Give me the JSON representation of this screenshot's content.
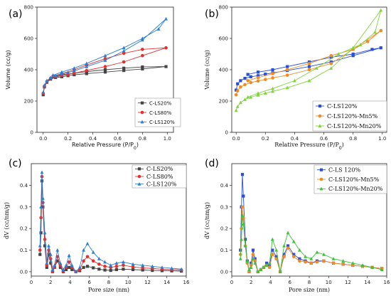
{
  "chart_data": [
    {
      "panel": "(a)",
      "type": "line",
      "xlabel": "Relative Pressure (P/P",
      "xlabel_sub": "0",
      "xlabel_tail": ")",
      "ylabel": "Volume (cc/g)",
      "xlim": [
        -0.05,
        1.05
      ],
      "ylim": [
        0,
        800
      ],
      "xticks": [
        0.0,
        0.2,
        0.4,
        0.6,
        0.8,
        1.0
      ],
      "xtick_labels": [
        "0.0",
        "0.2",
        "0.4",
        "0.6",
        "0.8",
        "1.0"
      ],
      "yticks": [
        0,
        200,
        400,
        600,
        800
      ],
      "ytick_labels": [
        "0",
        "200",
        "400",
        "600",
        "800"
      ],
      "legend_position": "bottom-right",
      "series": [
        {
          "name": "C-LS20%",
          "color": "#444444",
          "marker": "square",
          "x": [
            0.0,
            0.01,
            0.03,
            0.06,
            0.1,
            0.15,
            0.2,
            0.25,
            0.35,
            0.5,
            0.65,
            0.8,
            0.99,
            0.8,
            0.65,
            0.5,
            0.35,
            0.25,
            0.15,
            0.08
          ],
          "y": [
            240,
            290,
            320,
            340,
            350,
            355,
            362,
            368,
            375,
            385,
            395,
            405,
            420,
            418,
            410,
            400,
            388,
            378,
            368,
            355
          ]
        },
        {
          "name": "C-LS80%",
          "color": "#e03030",
          "marker": "circle",
          "x": [
            0.0,
            0.01,
            0.03,
            0.06,
            0.1,
            0.15,
            0.2,
            0.25,
            0.35,
            0.5,
            0.65,
            0.8,
            0.99,
            0.8,
            0.65,
            0.5,
            0.35,
            0.25,
            0.15,
            0.08
          ],
          "y": [
            250,
            295,
            325,
            345,
            355,
            362,
            370,
            378,
            395,
            420,
            450,
            490,
            540,
            530,
            505,
            470,
            430,
            400,
            375,
            360
          ]
        },
        {
          "name": "C-LS120%",
          "color": "#2a7fd4",
          "marker": "triangle",
          "x": [
            0.0,
            0.01,
            0.03,
            0.06,
            0.1,
            0.15,
            0.2,
            0.25,
            0.35,
            0.5,
            0.65,
            0.8,
            0.99,
            0.93,
            0.8,
            0.65,
            0.5,
            0.35,
            0.25,
            0.15,
            0.08
          ],
          "y": [
            255,
            300,
            330,
            350,
            362,
            372,
            382,
            392,
            420,
            460,
            520,
            590,
            725,
            660,
            600,
            540,
            490,
            440,
            410,
            385,
            365
          ]
        }
      ]
    },
    {
      "panel": "(b)",
      "type": "line",
      "xlabel": "Relative Pressure (P/P",
      "xlabel_sub": "0",
      "xlabel_tail": ")",
      "ylabel": "Volume (cc/g)",
      "xlim": [
        -0.03,
        1.03
      ],
      "ylim": [
        0,
        800
      ],
      "xticks": [
        0.0,
        0.2,
        0.4,
        0.6,
        0.8,
        1.0
      ],
      "xtick_labels": [
        "0.0",
        "0.2",
        "0.4",
        "0.6",
        "0.8",
        "1.0"
      ],
      "yticks": [
        0,
        200,
        400,
        600,
        800
      ],
      "ytick_labels": [
        "0",
        "200",
        "400",
        "600",
        "800"
      ],
      "legend_position": "bottom-right",
      "series": [
        {
          "name": "C-LS120%",
          "color": "#2a4fd4",
          "marker": "square",
          "x": [
            0.0,
            0.01,
            0.03,
            0.06,
            0.1,
            0.15,
            0.2,
            0.25,
            0.35,
            0.5,
            0.65,
            0.8,
            0.99,
            0.93,
            0.8,
            0.65,
            0.5,
            0.35,
            0.25,
            0.15,
            0.08
          ],
          "y": [
            270,
            310,
            330,
            345,
            355,
            362,
            372,
            380,
            395,
            420,
            450,
            490,
            540,
            530,
            500,
            480,
            450,
            420,
            400,
            385,
            370
          ]
        },
        {
          "name": "C-LS120%-Mn5%",
          "color": "#f08a24",
          "marker": "circle",
          "x": [
            0.0,
            0.01,
            0.03,
            0.06,
            0.1,
            0.15,
            0.2,
            0.25,
            0.35,
            0.5,
            0.65,
            0.8,
            0.99,
            0.9,
            0.8,
            0.65,
            0.5,
            0.35,
            0.25,
            0.15,
            0.08
          ],
          "y": [
            240,
            265,
            290,
            305,
            318,
            328,
            338,
            348,
            365,
            400,
            440,
            530,
            650,
            580,
            530,
            490,
            440,
            400,
            375,
            350,
            330
          ]
        },
        {
          "name": "C-LS120%-Mn20%",
          "color": "#7fd43a",
          "marker": "triangle",
          "x": [
            0.0,
            0.01,
            0.03,
            0.06,
            0.1,
            0.15,
            0.2,
            0.25,
            0.35,
            0.5,
            0.65,
            0.8,
            0.99,
            0.95,
            0.85,
            0.7,
            0.55,
            0.4,
            0.25,
            0.15,
            0.08
          ],
          "y": [
            140,
            165,
            190,
            210,
            225,
            238,
            250,
            262,
            285,
            330,
            410,
            540,
            780,
            640,
            560,
            500,
            410,
            330,
            280,
            250,
            225
          ]
        }
      ]
    },
    {
      "panel": "(c)",
      "type": "line",
      "xlabel": "Pore size (nm)",
      "ylabel": "dV (cc/nm/g)",
      "xlim": [
        0,
        16
      ],
      "ylim": [
        -0.02,
        0.5
      ],
      "xticks": [
        0,
        2,
        4,
        6,
        8,
        10,
        12,
        14,
        16
      ],
      "xtick_labels": [
        "0",
        "2",
        "4",
        "6",
        "8",
        "10",
        "12",
        "14",
        "16"
      ],
      "yticks": [
        0.0,
        0.1,
        0.2,
        0.3,
        0.4
      ],
      "ytick_labels": [
        "0.0",
        "0.1",
        "0.2",
        "0.3",
        "0.4"
      ],
      "legend_position": "top-right",
      "series": [
        {
          "name": "C-LS20%",
          "color": "#444444",
          "marker": "square",
          "x": [
            0.9,
            1.0,
            1.1,
            1.2,
            1.4,
            1.6,
            1.8,
            2.0,
            2.2,
            2.4,
            2.7,
            3.0,
            3.3,
            3.6,
            3.9,
            4.2,
            4.6,
            5.0,
            5.4,
            5.8,
            6.4,
            7.0,
            7.6,
            8.2,
            8.8,
            9.5,
            10.5,
            11.5,
            12.5,
            13.5,
            14.5,
            15.5
          ],
          "y": [
            0.08,
            0.18,
            0.42,
            0.3,
            0.12,
            0.02,
            0.08,
            0.04,
            0.0,
            0.02,
            0.05,
            0.02,
            0.0,
            0.01,
            0.02,
            0.01,
            0.0,
            0.005,
            0.02,
            0.025,
            0.018,
            0.012,
            0.008,
            0.006,
            0.01,
            0.012,
            0.01,
            0.008,
            0.006,
            0.005,
            0.004,
            0.003
          ]
        },
        {
          "name": "C-LS80%",
          "color": "#e03030",
          "marker": "circle",
          "x": [
            0.9,
            1.0,
            1.1,
            1.2,
            1.4,
            1.6,
            1.8,
            2.0,
            2.2,
            2.4,
            2.7,
            3.0,
            3.3,
            3.6,
            3.9,
            4.2,
            4.6,
            5.0,
            5.4,
            5.8,
            6.4,
            7.0,
            7.6,
            8.2,
            8.8,
            9.5,
            10.5,
            11.5,
            12.5,
            13.5,
            14.5,
            15.5
          ],
          "y": [
            0.1,
            0.25,
            0.44,
            0.32,
            0.15,
            0.03,
            0.1,
            0.06,
            0.0,
            0.02,
            0.07,
            0.03,
            0.0,
            0.02,
            0.045,
            0.02,
            0.0,
            0.01,
            0.05,
            0.07,
            0.05,
            0.035,
            0.025,
            0.02,
            0.025,
            0.03,
            0.022,
            0.018,
            0.015,
            0.012,
            0.01,
            0.008
          ]
        },
        {
          "name": "C-LS120%",
          "color": "#2a7fd4",
          "marker": "triangle",
          "x": [
            0.9,
            1.0,
            1.1,
            1.2,
            1.4,
            1.6,
            1.8,
            2.0,
            2.2,
            2.4,
            2.7,
            3.0,
            3.3,
            3.6,
            3.9,
            4.2,
            4.6,
            5.0,
            5.4,
            5.8,
            6.4,
            7.0,
            7.6,
            8.2,
            8.8,
            9.5,
            10.5,
            11.5,
            12.5,
            13.5,
            14.5,
            15.5
          ],
          "y": [
            0.12,
            0.3,
            0.46,
            0.34,
            0.18,
            0.04,
            0.12,
            0.08,
            0.01,
            0.03,
            0.1,
            0.04,
            0.01,
            0.03,
            0.075,
            0.03,
            0.0,
            0.02,
            0.1,
            0.13,
            0.09,
            0.06,
            0.045,
            0.03,
            0.04,
            0.045,
            0.035,
            0.03,
            0.025,
            0.02,
            0.016,
            0.012
          ]
        }
      ]
    },
    {
      "panel": "(d)",
      "type": "line",
      "xlabel": "Pore size (nm)",
      "ylabel": "dV (cc/nm/g)",
      "xlim": [
        0,
        16
      ],
      "ylim": [
        -0.02,
        0.5
      ],
      "xticks": [
        0,
        2,
        4,
        6,
        8,
        10,
        12,
        14,
        16
      ],
      "xtick_labels": [
        "0",
        "2",
        "4",
        "6",
        "8",
        "10",
        "12",
        "14",
        "16"
      ],
      "yticks": [
        0.0,
        0.1,
        0.2,
        0.3,
        0.4
      ],
      "ytick_labels": [
        "0.0",
        "0.1",
        "0.2",
        "0.3",
        "0.4"
      ],
      "legend_position": "top-right",
      "series": [
        {
          "name": "C-LS 120%",
          "color": "#2a4fd4",
          "marker": "square",
          "x": [
            0.9,
            1.0,
            1.1,
            1.2,
            1.4,
            1.6,
            1.8,
            2.0,
            2.2,
            2.4,
            2.7,
            3.0,
            3.3,
            3.6,
            3.9,
            4.2,
            4.6,
            5.0,
            5.4,
            5.8,
            6.4,
            7.0,
            7.6,
            8.2,
            8.8,
            9.5,
            10.5,
            11.5,
            12.5,
            13.5,
            14.5,
            15.5
          ],
          "y": [
            0.1,
            0.3,
            0.45,
            0.35,
            0.15,
            0.05,
            0.0,
            0.04,
            0.1,
            0.06,
            0.0,
            0.01,
            0.02,
            0.04,
            0.03,
            0.1,
            0.07,
            0.0,
            0.08,
            0.12,
            0.08,
            0.06,
            0.05,
            0.04,
            0.05,
            0.05,
            0.04,
            0.035,
            0.03,
            0.025,
            0.02,
            0.015
          ]
        },
        {
          "name": "C-LS120%-Mn5%",
          "color": "#f08a24",
          "marker": "circle",
          "x": [
            0.9,
            1.0,
            1.1,
            1.2,
            1.4,
            1.6,
            1.8,
            2.0,
            2.2,
            2.4,
            2.7,
            3.0,
            3.3,
            3.6,
            3.9,
            4.2,
            4.6,
            5.0,
            5.4,
            5.8,
            6.4,
            7.0,
            7.6,
            8.2,
            8.8,
            9.5,
            10.5,
            11.5,
            12.5,
            13.5,
            14.5,
            15.5
          ],
          "y": [
            0.08,
            0.2,
            0.3,
            0.25,
            0.12,
            0.04,
            0.0,
            0.03,
            0.08,
            0.05,
            0.0,
            0.01,
            0.02,
            0.03,
            0.02,
            0.08,
            0.06,
            0.0,
            0.07,
            0.11,
            0.07,
            0.05,
            0.045,
            0.04,
            0.045,
            0.05,
            0.04,
            0.035,
            0.03,
            0.025,
            0.02,
            0.015
          ]
        },
        {
          "name": "C-LS120%-Mn20%",
          "color": "#3fc23a",
          "marker": "triangle",
          "x": [
            0.9,
            1.0,
            1.1,
            1.2,
            1.4,
            1.6,
            1.8,
            2.0,
            2.2,
            2.4,
            2.7,
            3.0,
            3.3,
            3.6,
            3.9,
            4.2,
            4.6,
            5.0,
            5.4,
            5.8,
            6.4,
            7.0,
            7.6,
            8.2,
            8.8,
            9.5,
            10.5,
            11.5,
            12.5,
            13.5,
            14.5,
            15.5
          ],
          "y": [
            0.06,
            0.15,
            0.26,
            0.22,
            0.12,
            0.05,
            0.01,
            0.02,
            0.06,
            0.04,
            0.0,
            0.01,
            0.02,
            0.03,
            0.04,
            0.15,
            0.1,
            0.0,
            0.12,
            0.18,
            0.14,
            0.1,
            0.07,
            0.06,
            0.09,
            0.08,
            0.06,
            0.05,
            0.04,
            0.03,
            0.02,
            0.01
          ]
        }
      ]
    }
  ]
}
